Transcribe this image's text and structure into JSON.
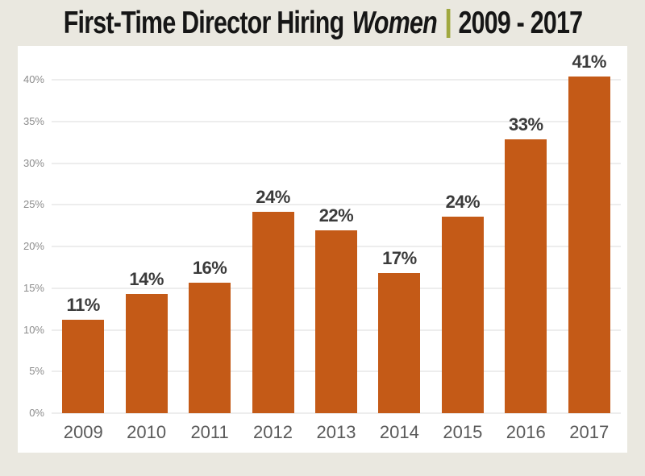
{
  "page": {
    "background_color": "#eae8e0",
    "panel_color": "#ffffff"
  },
  "title": {
    "main": "First-Time Director Hiring",
    "emphasis": "Women",
    "range": "2009 - 2017",
    "separator_color": "#a0a83f",
    "text_color": "#161616"
  },
  "chart_data": {
    "type": "bar",
    "title": "First-Time Director Hiring Women | 2009 - 2017",
    "categories": [
      "2009",
      "2010",
      "2011",
      "2012",
      "2013",
      "2014",
      "2015",
      "2016",
      "2017"
    ],
    "values": [
      11,
      14,
      16,
      24,
      22,
      17,
      24,
      33,
      41
    ],
    "value_labels": [
      "11%",
      "14%",
      "16%",
      "24%",
      "22%",
      "17%",
      "24%",
      "33%",
      "41%"
    ],
    "bar_heights_pct": [
      11.2,
      14.3,
      15.7,
      24.2,
      21.9,
      16.8,
      23.6,
      32.9,
      40.4
    ],
    "xlabel": "",
    "ylabel": "",
    "y_ticks": [
      {
        "value": 0,
        "label": "0%"
      },
      {
        "value": 5,
        "label": "5%"
      },
      {
        "value": 10,
        "label": "10%"
      },
      {
        "value": 15,
        "label": "15%"
      },
      {
        "value": 20,
        "label": "20%"
      },
      {
        "value": 25,
        "label": "25%"
      },
      {
        "value": 30,
        "label": "30%"
      },
      {
        "value": 35,
        "label": "35%"
      },
      {
        "value": 40,
        "label": "40%"
      }
    ],
    "ylim": [
      0,
      43.5
    ],
    "grid": true,
    "legend": null,
    "colors": {
      "bar": "#c45a17",
      "value_label": "#3b3b3b",
      "year_label": "#5a5a5a",
      "y_tick_label": "#8c8c8c",
      "gridline": "#ededed"
    }
  }
}
